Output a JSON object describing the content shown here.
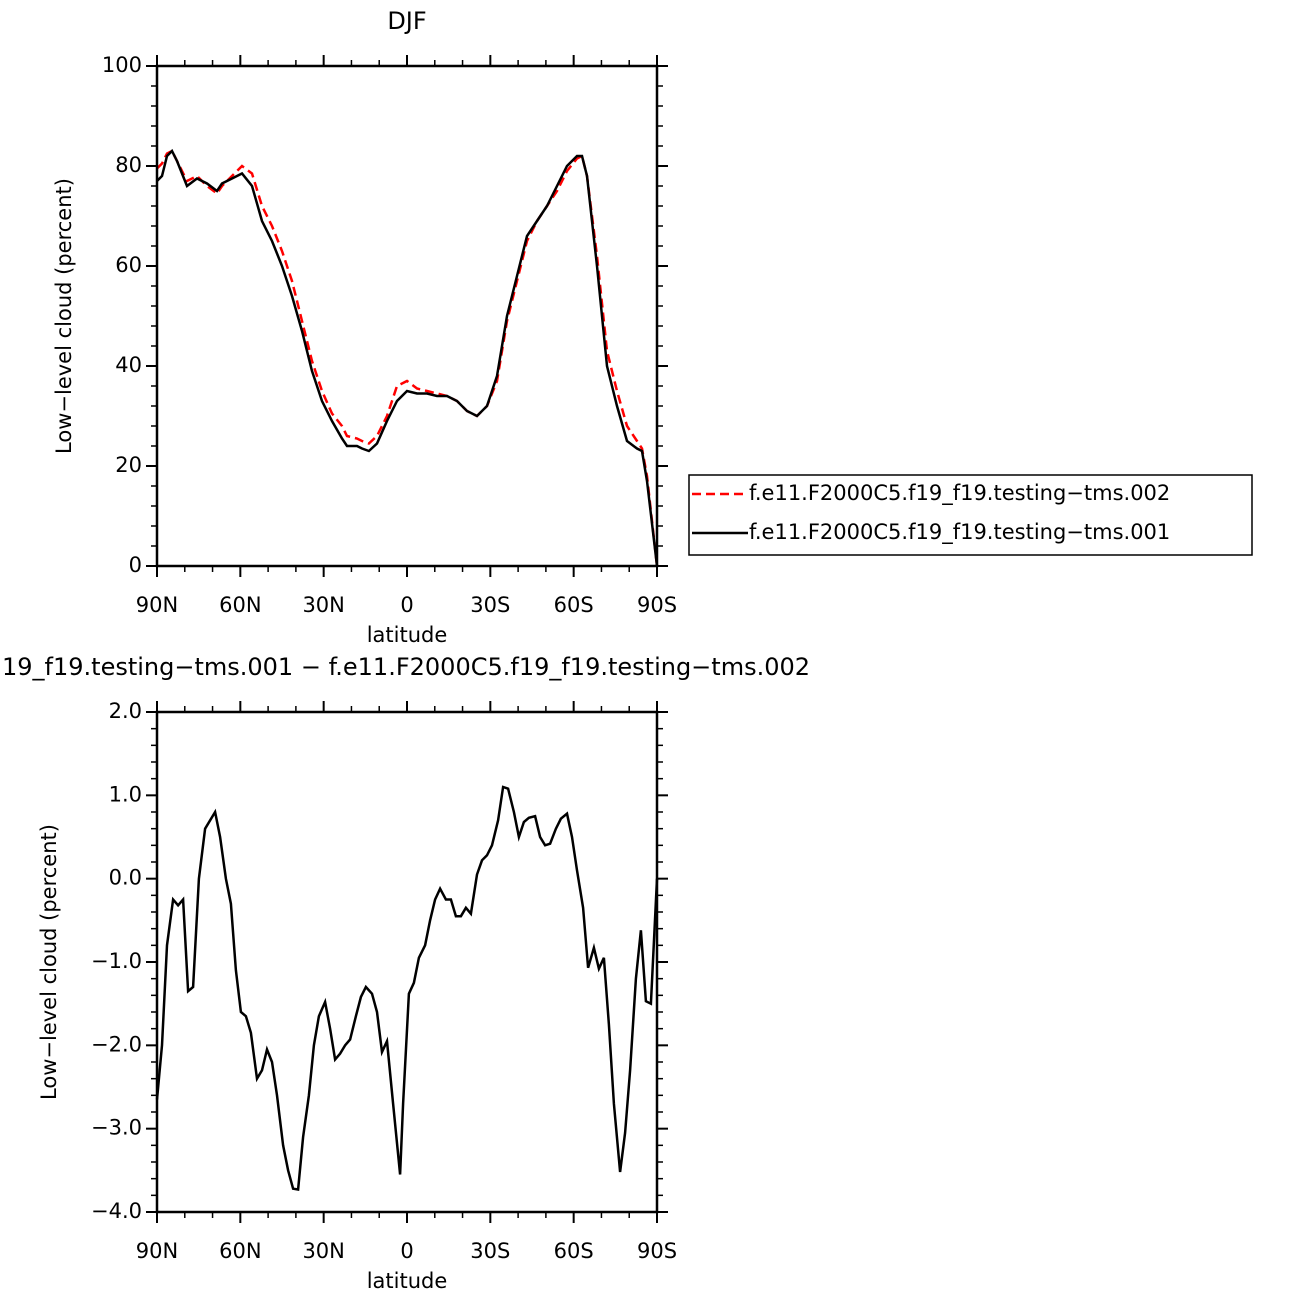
{
  "chart_data": [
    {
      "type": "line",
      "title": "DJF",
      "x_label": "latitude",
      "y_label": "Low−level cloud (percent)",
      "x": [
        90,
        88.2,
        86.4,
        84.6,
        82.8,
        79.2,
        75.6,
        72,
        68.4,
        66.6,
        63,
        59.4,
        55.8,
        52.2,
        48.6,
        45,
        41.4,
        37.8,
        34.2,
        30.6,
        27,
        23.4,
        21.6,
        18,
        16.2,
        13.7,
        10.8,
        7.2,
        3.6,
        0,
        -3.6,
        -7.2,
        -10.8,
        -14.4,
        -18,
        -21.6,
        -25.2,
        -28.8,
        -32.4,
        -36,
        -39.6,
        -43.2,
        -46.8,
        -50.4,
        -54,
        -57.6,
        -61.2,
        -63,
        -64.8,
        -68.4,
        -72,
        -75.6,
        -79.2,
        -82.8,
        -84.6,
        -86.4,
        -90
      ],
      "series": [
        {
          "name": "f.e11.F2000C5.f19_f19.testing−tms.002",
          "color": "#ff0000",
          "line_style": "dashed",
          "values": [
            79.5,
            80.5,
            82.5,
            83,
            81,
            77,
            78,
            76,
            74.5,
            76,
            78,
            80,
            78.5,
            72,
            68,
            63,
            57,
            49,
            41,
            35,
            30.5,
            28,
            26,
            25.5,
            25,
            24.5,
            26,
            30,
            36,
            37,
            35.5,
            35,
            34.5,
            34,
            33,
            31,
            30,
            32,
            37,
            49,
            57,
            65,
            69,
            72,
            75,
            79,
            81.5,
            82,
            78,
            62,
            43,
            35,
            28,
            25,
            23.5,
            18,
            0
          ]
        },
        {
          "name": "f.e11.F2000C5.f19_f19.testing−tms.001",
          "color": "#000000",
          "line_style": "solid",
          "values": [
            77,
            78,
            82,
            83,
            81,
            76,
            77.5,
            76.5,
            75,
            76.5,
            77.5,
            78.5,
            76,
            69,
            65,
            60,
            54,
            47,
            39,
            33,
            29,
            25.5,
            24,
            24,
            23.5,
            23,
            24.5,
            29,
            33,
            35,
            34.5,
            34.5,
            34,
            34,
            33,
            31,
            30,
            32,
            38,
            50,
            58,
            66,
            69,
            72,
            76,
            80,
            82,
            82,
            78,
            60,
            40,
            32,
            25,
            23.5,
            23,
            17,
            0
          ]
        }
      ],
      "xlim": [
        90,
        -90
      ],
      "xticks": [
        {
          "value": 90,
          "label": "90N"
        },
        {
          "value": 60,
          "label": "60N"
        },
        {
          "value": 30,
          "label": "30N"
        },
        0,
        {
          "value": -30,
          "label": "30S"
        },
        {
          "value": -60,
          "label": "60S"
        },
        {
          "value": -90,
          "label": "90S"
        }
      ],
      "ylim": [
        0,
        100
      ],
      "yticks": [
        0,
        20,
        40,
        60,
        80,
        100
      ],
      "legend": "right"
    },
    {
      "type": "line",
      "title": "19_f19.testing−tms.001 − f.e11.F2000C5.f19_f19.testing−tms.002",
      "x_label": "latitude",
      "y_label": "Low−level cloud (percent)",
      "x": [
        90,
        88.2,
        86.4,
        84.2,
        82.4,
        80.6,
        78.8,
        77,
        74.9,
        72.7,
        69.1,
        67.3,
        65.2,
        63.4,
        61.6,
        59.8,
        58,
        56.2,
        54,
        52.2,
        50.4,
        48.6,
        46.8,
        44.6,
        42.8,
        41,
        39.2,
        37.4,
        35.3,
        33.5,
        31.7,
        29.5,
        27.7,
        25.9,
        24.1,
        22.3,
        20.5,
        18.4,
        16.6,
        14.8,
        12.6,
        10.8,
        9,
        7.2,
        5,
        2.5,
        1.4,
        -0.7,
        -2.5,
        -4.3,
        -6.5,
        -8.3,
        -10.1,
        -11.9,
        -14,
        -15.8,
        -17.6,
        -19.4,
        -21.2,
        -23,
        -25.2,
        -27,
        -28.8,
        -30.6,
        -32.8,
        -34.6,
        -36.4,
        -38.5,
        -40.3,
        -42.1,
        -43.9,
        -46.1,
        -47.9,
        -49.7,
        -51.5,
        -53.6,
        -55.4,
        -57.6,
        -59.4,
        -61.2,
        -63.4,
        -65.2,
        -67.3,
        -69.1,
        -70.9,
        -72.7,
        -74.5,
        -76.7,
        -78.5,
        -80.3,
        -82.4,
        -84.2,
        -86,
        -87.8,
        -90
      ],
      "values": [
        -2.65,
        -2.0,
        -0.8,
        -0.25,
        -0.32,
        -0.25,
        -1.35,
        -1.3,
        0.0,
        0.6,
        0.8,
        0.5,
        0.0,
        -0.3,
        -1.1,
        -1.6,
        -1.65,
        -1.85,
        -2.4,
        -2.3,
        -2.05,
        -2.2,
        -2.6,
        -3.2,
        -3.5,
        -3.72,
        -3.73,
        -3.1,
        -2.6,
        -2.0,
        -1.65,
        -1.48,
        -1.8,
        -2.17,
        -2.1,
        -2.0,
        -1.93,
        -1.65,
        -1.42,
        -1.3,
        -1.38,
        -1.6,
        -2.08,
        -1.95,
        -2.7,
        -3.55,
        -2.7,
        -1.38,
        -1.25,
        -0.95,
        -0.8,
        -0.5,
        -0.25,
        -0.12,
        -0.25,
        -0.25,
        -0.45,
        -0.45,
        -0.35,
        -0.42,
        0.05,
        0.22,
        0.28,
        0.4,
        0.7,
        1.1,
        1.08,
        0.8,
        0.5,
        0.68,
        0.73,
        0.75,
        0.5,
        0.4,
        0.42,
        0.6,
        0.72,
        0.78,
        0.5,
        0.1,
        -0.35,
        -1.07,
        -0.83,
        -1.08,
        -0.95,
        -1.75,
        -2.7,
        -3.52,
        -3.05,
        -2.3,
        -1.2,
        -0.62,
        -1.47,
        -1.5,
        0.0
      ],
      "color": "#000000",
      "xlim": [
        90,
        -90
      ],
      "xticks": [
        {
          "value": 90,
          "label": "90N"
        },
        {
          "value": 60,
          "label": "60N"
        },
        {
          "value": 30,
          "label": "30N"
        },
        0,
        {
          "value": -30,
          "label": "30S"
        },
        {
          "value": -60,
          "label": "60S"
        },
        {
          "value": -90,
          "label": "90S"
        }
      ],
      "ylim": [
        -4,
        2
      ],
      "yticks": [
        {
          "value": -4,
          "label": "−4.0"
        },
        {
          "value": -3,
          "label": "−3.0"
        },
        {
          "value": -2,
          "label": "−2.0"
        },
        {
          "value": -1,
          "label": "−1.0"
        },
        {
          "value": 0,
          "label": "0.0"
        },
        {
          "value": 1,
          "label": "1.0"
        },
        {
          "value": 2,
          "label": "2.0"
        }
      ]
    }
  ]
}
